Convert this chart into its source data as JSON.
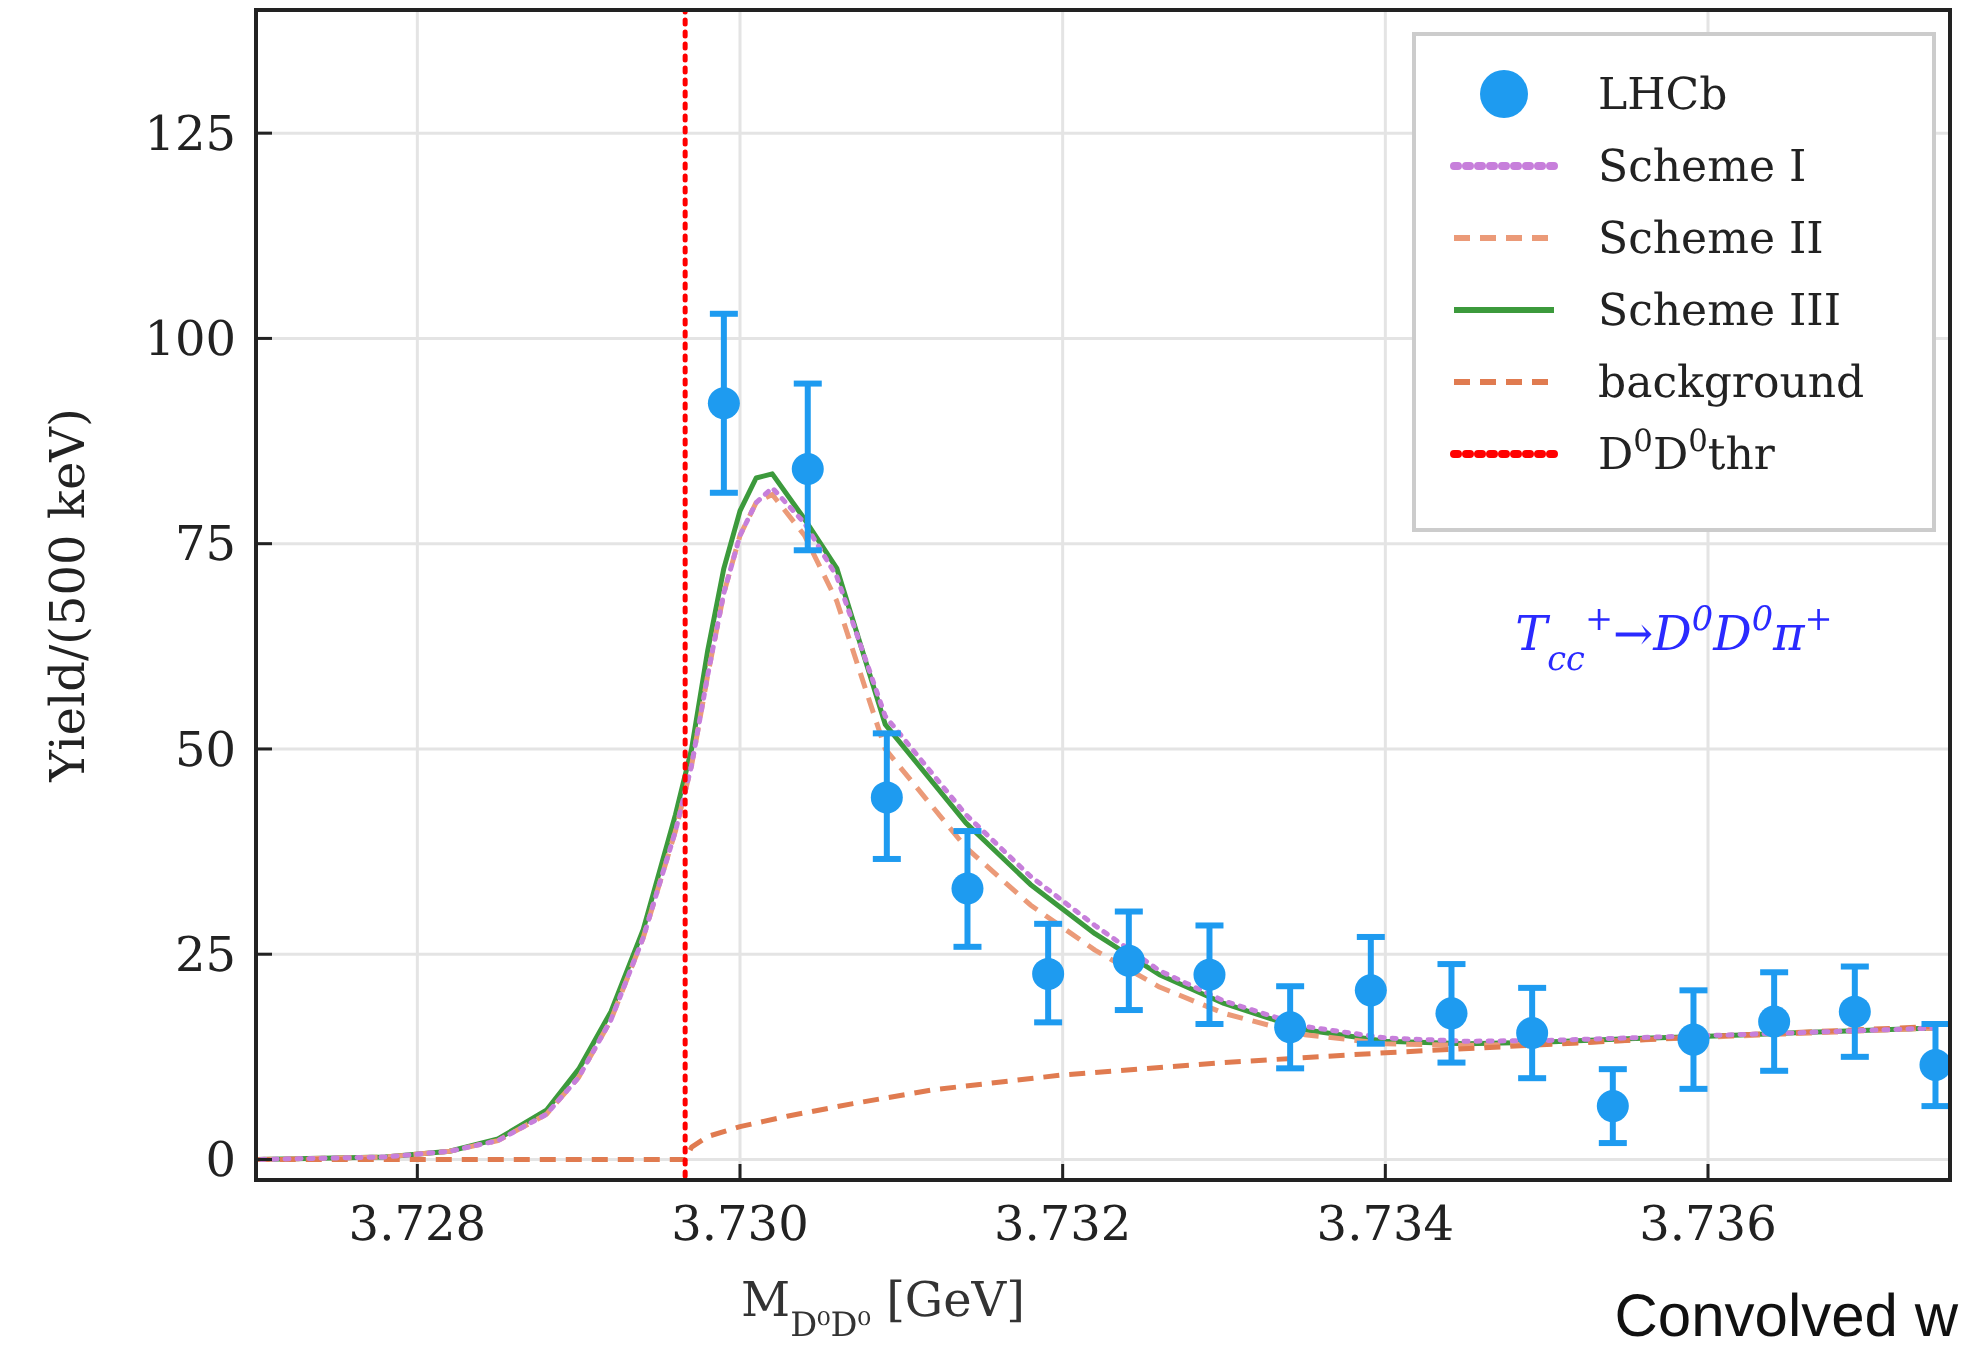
{
  "chart_data": {
    "type": "line",
    "xlabel": "M$_{D⁰D⁰}$ [GeV]",
    "ylabel": "Yield/(500 keV)",
    "xlim": [
      3.727,
      3.7375
    ],
    "xticks": [
      3.728,
      {
        "value": 3.73,
        "label": "3.730"
      },
      3.732,
      3.734,
      3.736
    ],
    "ylim": [
      -2.5,
      140
    ],
    "yticks": [
      0,
      25,
      50,
      75,
      100,
      125
    ],
    "grid": true,
    "legend": "top right",
    "series": [
      {
        "name": "LHCb",
        "type": "scatter",
        "color": "#1e9bf0",
        "marker": "circle",
        "x": [
          3.7299,
          3.73042,
          3.73091,
          3.73141,
          3.73191,
          3.73241,
          3.73291,
          3.73341,
          3.73391,
          3.73441,
          3.73491,
          3.73541,
          3.73591,
          3.73641,
          3.73691,
          3.73741
        ],
        "values": [
          92.1,
          84.1,
          44.1,
          33.0,
          22.6,
          24.2,
          22.5,
          16.1,
          20.6,
          17.8,
          15.4,
          6.5,
          14.6,
          16.8,
          18.0,
          11.5
        ],
        "errors": [
          [
            81.2,
            103
          ],
          [
            74.2,
            94.5
          ],
          [
            36.6,
            51.9
          ],
          [
            25.9,
            40.0
          ],
          [
            16.7,
            28.7
          ],
          [
            18.2,
            30.2
          ],
          [
            16.5,
            28.5
          ],
          [
            11.1,
            21.1
          ],
          [
            14.1,
            27.1
          ],
          [
            11.8,
            23.8
          ],
          [
            9.9,
            20.9
          ],
          [
            2.0,
            11.0
          ],
          [
            8.6,
            20.6
          ],
          [
            10.8,
            22.8
          ],
          [
            12.5,
            23.5
          ],
          [
            6.5,
            16.5
          ]
        ]
      },
      {
        "name": "Scheme I",
        "color": "#c77fdb",
        "line_style": "dotted",
        "marker": "none",
        "x": [
          3.727,
          3.7278,
          3.7282,
          3.7285,
          3.7288,
          3.729,
          3.7292,
          3.7294,
          3.7296,
          3.7297,
          3.7298,
          3.7299,
          3.73,
          3.7301,
          3.7302,
          3.7304,
          3.7306,
          3.7309,
          3.7314,
          3.7318,
          3.7322,
          3.7326,
          3.733,
          3.7335,
          3.734,
          3.7345,
          3.735,
          3.7355,
          3.736,
          3.7365,
          3.7374
        ],
        "values": [
          0,
          0.3,
          1,
          2.3,
          5.5,
          10,
          17,
          27,
          40,
          48,
          59,
          69,
          76,
          80,
          81.8,
          77.5,
          71,
          54,
          42,
          34.5,
          28.5,
          23,
          19.3,
          16.2,
          14.8,
          14.4,
          14.5,
          14.8,
          15.1,
          15.4,
          16
        ]
      },
      {
        "name": "Scheme II",
        "color": "#eb9a78",
        "line_style": "dashed",
        "marker": "none",
        "x": [
          3.727,
          3.7278,
          3.7282,
          3.7285,
          3.7288,
          3.729,
          3.7292,
          3.7294,
          3.7296,
          3.7297,
          3.7298,
          3.7299,
          3.73,
          3.7301,
          3.7302,
          3.7304,
          3.7306,
          3.7309,
          3.7314,
          3.7318,
          3.7322,
          3.7326,
          3.733,
          3.7335,
          3.734,
          3.7345,
          3.735,
          3.7355,
          3.736,
          3.7365,
          3.7374
        ],
        "values": [
          0,
          0.3,
          1,
          2.3,
          5.5,
          10,
          17,
          27,
          40,
          48,
          59,
          69,
          76,
          80,
          81,
          76,
          68,
          50,
          38,
          31,
          25.5,
          21,
          17.8,
          15.2,
          14.1,
          13.9,
          14.1,
          14.5,
          14.9,
          15.3,
          16
        ]
      },
      {
        "name": "Scheme III",
        "color": "#3c9a3c",
        "line_style": "solid",
        "marker": "none",
        "x": [
          3.727,
          3.7278,
          3.7282,
          3.7285,
          3.7288,
          3.729,
          3.7292,
          3.7294,
          3.7296,
          3.7297,
          3.7298,
          3.7299,
          3.73,
          3.7301,
          3.7302,
          3.7304,
          3.7306,
          3.7309,
          3.7314,
          3.7318,
          3.7322,
          3.7326,
          3.733,
          3.7335,
          3.734,
          3.7345,
          3.735,
          3.7355,
          3.736,
          3.7365,
          3.7374
        ],
        "values": [
          0,
          0.3,
          1,
          2.5,
          6,
          11,
          18,
          28,
          42,
          50,
          62,
          72,
          79,
          83,
          83.5,
          78,
          72,
          53,
          41,
          33.5,
          27.5,
          22.5,
          19,
          15.8,
          14.4,
          14.1,
          14.3,
          14.7,
          15,
          15.4,
          16
        ]
      },
      {
        "name": "background",
        "color": "#e07b50",
        "line_style": "dashed",
        "marker": "none",
        "x": [
          3.727,
          3.72966,
          3.7297,
          3.7298,
          3.73,
          3.7303,
          3.7307,
          3.7312,
          3.732,
          3.733,
          3.734,
          3.735,
          3.736,
          3.7374
        ],
        "values": [
          0,
          0,
          1.5,
          2.8,
          4,
          5.3,
          6.8,
          8.5,
          10.3,
          11.8,
          13,
          14,
          15,
          16.2
        ]
      },
      {
        "name": "D$^{0}$D$^{0}$thr",
        "color": "#ff0000",
        "line_style": "dotted",
        "marker": "none",
        "x": [
          3.72966,
          3.72966
        ],
        "values": [
          -2.5,
          140
        ]
      }
    ],
    "annotations": [
      "T$_{cc}$$^{+}$→D$^{0}$D$^{0}$π$^{+}$",
      "Convolved w"
    ]
  }
}
